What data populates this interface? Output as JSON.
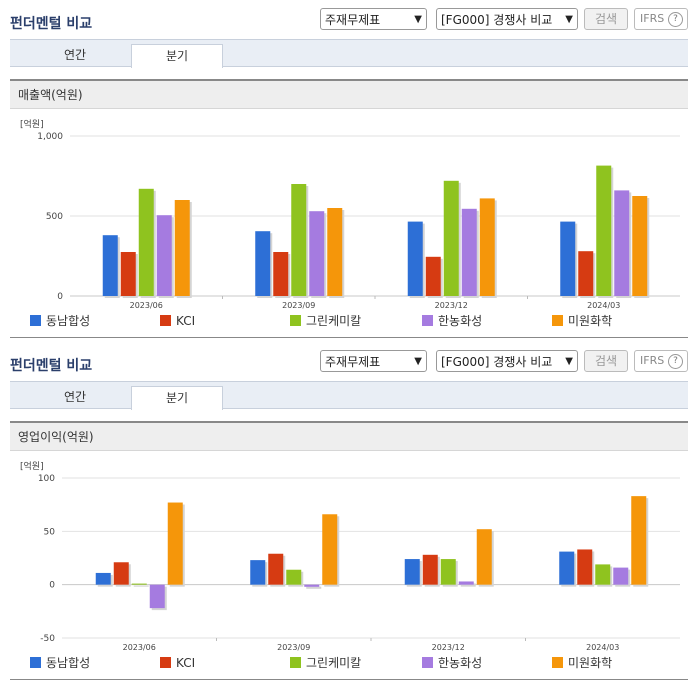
{
  "colors": [
    "#2d6fd6",
    "#d63b12",
    "#8fc31f",
    "#a57be0",
    "#f5960a"
  ],
  "panels": [
    {
      "title": "펀더멘털 비교",
      "select1": "주재무제표",
      "select2": "[FG000] 경쟁사 비교",
      "search_label": "검색",
      "ifrs_label": "IFRS",
      "help_label": "?",
      "tabs": [
        "연간",
        "분기"
      ],
      "active_tab": 1,
      "section_label": "매출액(억원)",
      "unit": "[억원]"
    },
    {
      "title": "펀더멘털 비교",
      "select1": "주재무제표",
      "select2": "[FG000] 경쟁사 비교",
      "search_label": "검색",
      "ifrs_label": "IFRS",
      "help_label": "?",
      "tabs": [
        "연간",
        "분기"
      ],
      "active_tab": 1,
      "section_label": "영업이익(억원)",
      "unit": "[억원]"
    }
  ],
  "chart_data": [
    {
      "type": "bar",
      "title": "매출액(억원)",
      "ylabel": "[억원]",
      "categories": [
        "2023/06",
        "2023/09",
        "2023/12",
        "2024/03"
      ],
      "ylim": [
        0,
        1000
      ],
      "yticks": [
        0,
        500,
        1000
      ],
      "ytick_labels": [
        "0",
        "500",
        "1,000"
      ],
      "series": [
        {
          "name": "동남합성",
          "values": [
            380,
            405,
            465,
            465
          ]
        },
        {
          "name": "KCI",
          "values": [
            275,
            275,
            245,
            280
          ]
        },
        {
          "name": "그린케미칼",
          "values": [
            670,
            700,
            720,
            815
          ]
        },
        {
          "name": "한농화성",
          "values": [
            505,
            530,
            545,
            660
          ]
        },
        {
          "name": "미원화학",
          "values": [
            600,
            550,
            610,
            625
          ]
        }
      ]
    },
    {
      "type": "bar",
      "title": "영업이익(억원)",
      "ylabel": "[억원]",
      "categories": [
        "2023/06",
        "2023/09",
        "2023/12",
        "2024/03"
      ],
      "ylim": [
        -50,
        100
      ],
      "yticks": [
        -50,
        0,
        50,
        100
      ],
      "ytick_labels": [
        "-50",
        "0",
        "50",
        "100"
      ],
      "series": [
        {
          "name": "동남합성",
          "values": [
            11,
            23,
            24,
            31
          ]
        },
        {
          "name": "KCI",
          "values": [
            21,
            29,
            28,
            33
          ]
        },
        {
          "name": "그린케미칼",
          "values": [
            1,
            14,
            24,
            19
          ]
        },
        {
          "name": "한농화성",
          "values": [
            -22,
            -2,
            3,
            16
          ]
        },
        {
          "name": "미원화학",
          "values": [
            77,
            66,
            52,
            83
          ]
        }
      ]
    }
  ]
}
